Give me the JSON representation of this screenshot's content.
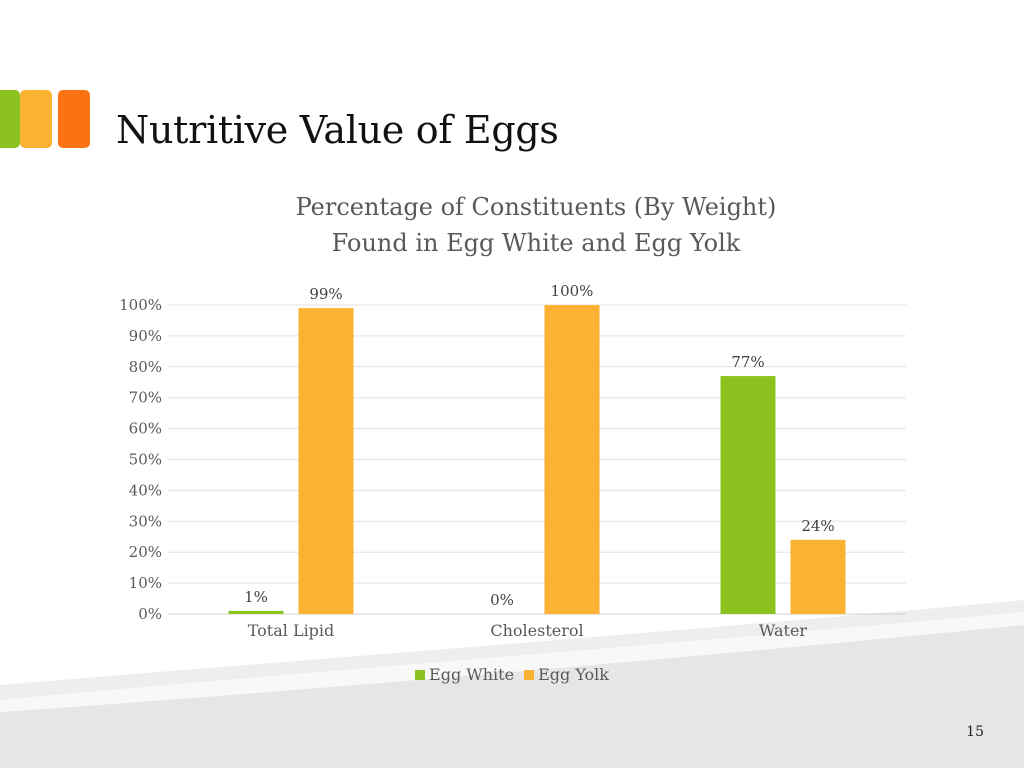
{
  "slide": {
    "title": "Nutritive Value of Eggs",
    "page_number": "15",
    "accent_colors": [
      "#8CC21F",
      "#FBB232",
      "#FA7214"
    ]
  },
  "chart_data": {
    "type": "bar",
    "title": "Percentage of Constituents (By Weight)",
    "subtitle": "Found in Egg White and Egg Yolk",
    "categories": [
      "Total Lipid",
      "Cholesterol",
      "Water"
    ],
    "series": [
      {
        "name": "Egg White",
        "color": "#8CC21F",
        "values": [
          1,
          0,
          77
        ],
        "labels": [
          "1%",
          "0%",
          "77%"
        ]
      },
      {
        "name": "Egg Yolk",
        "color": "#FBB232",
        "values": [
          99,
          100,
          24
        ],
        "labels": [
          "99%",
          "100%",
          "24%"
        ]
      }
    ],
    "ylim": [
      0,
      100
    ],
    "yticks": [
      0,
      10,
      20,
      30,
      40,
      50,
      60,
      70,
      80,
      90,
      100
    ],
    "ytick_labels": [
      "0%",
      "10%",
      "20%",
      "30%",
      "40%",
      "50%",
      "60%",
      "70%",
      "80%",
      "90%",
      "100%"
    ],
    "grid": true,
    "legend": "bottom"
  }
}
